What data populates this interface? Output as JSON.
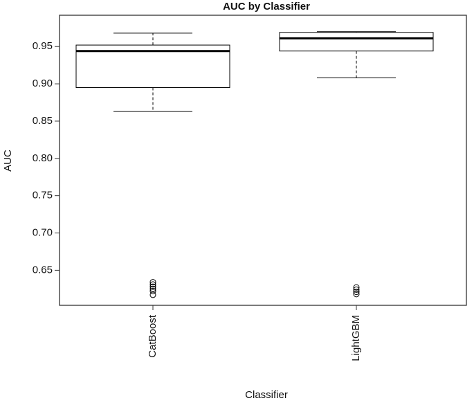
{
  "chart_data": {
    "type": "boxplot",
    "title": "AUC by Classifier",
    "x_label": "Classifier",
    "y_label": "AUC",
    "categories": [
      "CatBoost",
      "LightGBM"
    ],
    "boxes": [
      {
        "whisker_low": 0.863,
        "q1": 0.895,
        "median": 0.944,
        "q3": 0.952,
        "whisker_high": 0.968,
        "outliers": [
          0.634,
          0.631,
          0.628,
          0.625,
          0.622,
          0.617
        ]
      },
      {
        "whisker_low": 0.908,
        "q1": 0.944,
        "median": 0.961,
        "q3": 0.969,
        "whisker_high": 0.97,
        "outliers": [
          0.627,
          0.624,
          0.621,
          0.618
        ]
      }
    ],
    "color": "#000000",
    "ylim": [
      0.603,
      0.992
    ],
    "yticks": [
      0.65,
      {
        "value": 0.7,
        "label": "0.70"
      },
      0.75,
      {
        "value": 0.8,
        "label": "0.80"
      },
      0.85,
      {
        "value": 0.9,
        "label": "0.90"
      },
      0.95
    ]
  }
}
